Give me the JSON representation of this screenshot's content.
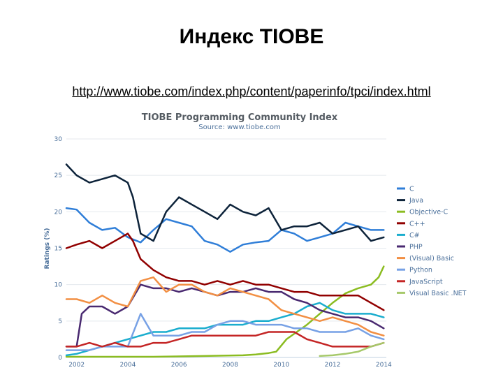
{
  "slide": {
    "title": "Индекс TIOBE",
    "link": "http://www.tiobe.com/index.php/content/paperinfo/tpci/index.html"
  },
  "chart_data": {
    "type": "line",
    "title": "TIOBE Programming Community Index",
    "subtitle": "Source: www.tiobe.com",
    "ylabel": "Ratings (%)",
    "xlabel": "",
    "xlim": [
      2001.6,
      2014.1
    ],
    "ylim": [
      0,
      30
    ],
    "yticks": [
      0,
      5,
      10,
      15,
      20,
      25,
      30
    ],
    "xticks": [
      "2002",
      "2004",
      "2006",
      "2008",
      "2010",
      "2012",
      "2014"
    ],
    "grid": true,
    "legend_position": "right",
    "series": [
      {
        "name": "C",
        "color": "#2f7ed8",
        "x": [
          2001.6,
          2002,
          2002.5,
          2003,
          2003.5,
          2004,
          2004.5,
          2005,
          2005.5,
          2006,
          2006.5,
          2007,
          2007.5,
          2008,
          2008.5,
          2009,
          2009.5,
          2010,
          2010.5,
          2011,
          2011.5,
          2012,
          2012.5,
          2013,
          2013.5,
          2014
        ],
        "y": [
          20.5,
          20.3,
          18.5,
          17.5,
          17.8,
          16.5,
          15.8,
          17.5,
          19,
          18.5,
          18,
          16,
          15.5,
          14.5,
          15.5,
          15.8,
          16,
          17.5,
          17,
          16,
          16.5,
          17,
          18.5,
          18,
          17.5,
          17.5
        ]
      },
      {
        "name": "Java",
        "color": "#0d233a",
        "x": [
          2001.6,
          2002,
          2002.5,
          2003,
          2003.5,
          2004,
          2004.2,
          2004.5,
          2005,
          2005.5,
          2006,
          2006.5,
          2007,
          2007.5,
          2008,
          2008.5,
          2009,
          2009.5,
          2010,
          2010.5,
          2011,
          2011.5,
          2012,
          2012.5,
          2013,
          2013.5,
          2014
        ],
        "y": [
          26.5,
          25,
          24,
          24.5,
          25,
          24,
          22,
          17,
          16,
          20,
          22,
          21,
          20,
          19,
          21,
          20,
          19.5,
          20.5,
          17.5,
          18,
          18,
          18.5,
          17,
          17.5,
          18,
          16,
          16.5
        ]
      },
      {
        "name": "Objective-C",
        "color": "#8bbc21",
        "x": [
          2001.6,
          2003,
          2005,
          2007,
          2008.5,
          2009,
          2009.5,
          2009.8,
          2010.2,
          2010.6,
          2011,
          2011.5,
          2012,
          2012.5,
          2013,
          2013.5,
          2013.8,
          2014
        ],
        "y": [
          0.1,
          0.1,
          0.1,
          0.2,
          0.3,
          0.4,
          0.6,
          0.8,
          2.5,
          3.5,
          4.5,
          6,
          7.5,
          8.8,
          9.5,
          10,
          11,
          12.5
        ]
      },
      {
        "name": "C++",
        "color": "#910000",
        "x": [
          2001.6,
          2002,
          2002.5,
          2003,
          2003.5,
          2004,
          2004.2,
          2004.5,
          2005,
          2005.5,
          2006,
          2006.5,
          2007,
          2007.5,
          2008,
          2008.5,
          2009,
          2009.5,
          2010,
          2010.5,
          2011,
          2011.5,
          2012,
          2012.5,
          2013,
          2013.5,
          2014
        ],
        "y": [
          15,
          15.5,
          16,
          15,
          16,
          17,
          16,
          13.5,
          12,
          11,
          10.5,
          10.5,
          10,
          10.5,
          10,
          10.5,
          10,
          10,
          9.5,
          9,
          9,
          8.5,
          8.5,
          8.5,
          8.5,
          7.5,
          6.5
        ]
      },
      {
        "name": "C#",
        "color": "#1aadce",
        "x": [
          2001.6,
          2002,
          2002.5,
          2003,
          2003.5,
          2004,
          2004.5,
          2005,
          2005.5,
          2006,
          2006.5,
          2007,
          2007.5,
          2008,
          2008.5,
          2009,
          2009.5,
          2010,
          2010.5,
          2011,
          2011.5,
          2012,
          2012.5,
          2013,
          2013.5,
          2014
        ],
        "y": [
          0.3,
          0.5,
          1,
          1.5,
          2,
          2.5,
          3,
          3.5,
          3.5,
          4,
          4,
          4,
          4.5,
          4.5,
          4.5,
          5,
          5,
          5.5,
          6,
          7,
          7.5,
          6.5,
          6,
          6,
          6,
          5.5
        ]
      },
      {
        "name": "PHP",
        "color": "#492970",
        "x": [
          2001.6,
          2002,
          2002.2,
          2002.5,
          2003,
          2003.5,
          2004,
          2004.5,
          2005,
          2005.5,
          2006,
          2006.5,
          2007,
          2007.5,
          2008,
          2008.5,
          2009,
          2009.5,
          2010,
          2010.5,
          2011,
          2011.5,
          2012,
          2012.5,
          2013,
          2013.5,
          2014
        ],
        "y": [
          1.5,
          1.5,
          6,
          7,
          7,
          6,
          7,
          10,
          9.5,
          9.5,
          9,
          9.5,
          9,
          8.5,
          9,
          9,
          9.5,
          9,
          9,
          8,
          7.5,
          6.5,
          6,
          5.5,
          5.5,
          5,
          4
        ]
      },
      {
        "name": "(Visual) Basic",
        "color": "#f28f43",
        "x": [
          2001.6,
          2002,
          2002.5,
          2003,
          2003.5,
          2004,
          2004.5,
          2005,
          2005.5,
          2006,
          2006.5,
          2007,
          2007.5,
          2008,
          2008.5,
          2009,
          2009.5,
          2010,
          2010.5,
          2011,
          2011.5,
          2012,
          2012.5,
          2013,
          2013.5,
          2014
        ],
        "y": [
          8,
          8,
          7.5,
          8.5,
          7.5,
          7,
          10.5,
          11,
          9,
          10,
          10,
          9,
          8.5,
          9.5,
          9,
          8.5,
          8,
          6.5,
          6,
          5.5,
          5,
          5.5,
          5,
          4.5,
          3.5,
          3
        ]
      },
      {
        "name": "Python",
        "color": "#77a1e5",
        "x": [
          2001.6,
          2002,
          2002.5,
          2003,
          2003.5,
          2004,
          2004.5,
          2005,
          2005.5,
          2006,
          2006.5,
          2007,
          2007.5,
          2008,
          2008.5,
          2009,
          2009.5,
          2010,
          2010.5,
          2011,
          2011.5,
          2012,
          2012.5,
          2013,
          2013.5,
          2014
        ],
        "y": [
          1,
          1,
          1,
          1.5,
          1.5,
          1.5,
          6,
          3,
          3,
          3,
          3.5,
          3.5,
          4.5,
          5,
          5,
          4.5,
          4.5,
          4.5,
          4,
          4,
          3.5,
          3.5,
          3.5,
          4,
          3,
          2.5
        ]
      },
      {
        "name": "JavaScript",
        "color": "#c42525",
        "x": [
          2001.6,
          2002,
          2002.5,
          2003,
          2003.5,
          2004,
          2004.5,
          2005,
          2005.5,
          2006,
          2006.5,
          2007,
          2007.5,
          2008,
          2008.5,
          2009,
          2009.5,
          2010,
          2010.5,
          2011,
          2011.5,
          2012,
          2012.5,
          2013,
          2013.5,
          2014
        ],
        "y": [
          1.5,
          1.5,
          2,
          1.5,
          2,
          1.5,
          1.5,
          2,
          2,
          2.5,
          3,
          3,
          3,
          3,
          3,
          3,
          3.5,
          3.5,
          3.5,
          2.5,
          2,
          1.5,
          1.5,
          1.5,
          1.5,
          2
        ]
      },
      {
        "name": "Visual Basic .NET",
        "color": "#a6c96a",
        "x": [
          2011.5,
          2012,
          2012.5,
          2013,
          2013.5,
          2014
        ],
        "y": [
          0.2,
          0.3,
          0.5,
          0.8,
          1.5,
          2
        ]
      }
    ]
  }
}
